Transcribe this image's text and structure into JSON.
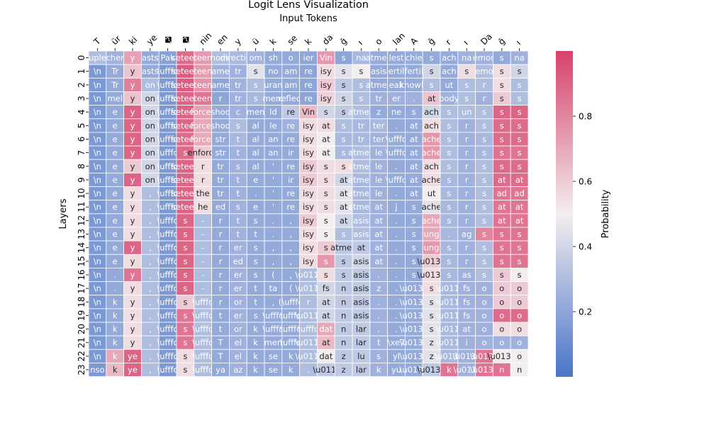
{
  "chart_data": {
    "type": "heatmap",
    "title": "Logit Lens Visualization",
    "subtitle": "Input Tokens",
    "ylabel": "Layers",
    "colorbar_label": "Probability",
    "colorbar_ticks": [
      0.2,
      0.4,
      0.6,
      0.8
    ],
    "value_range": [
      0.0,
      1.0
    ],
    "colormap": {
      "low": "#4a74c9",
      "mid": "#f3eeee",
      "high": "#d6416b"
    },
    "x_tokens": [
      "T",
      "ür",
      "ki",
      "ye",
      "�",
      "�",
      "nin",
      "en",
      "y",
      "ü",
      "k",
      "se",
      "k",
      "da",
      "ğ",
      "ı",
      "o",
      "lan",
      "A",
      "ğ",
      "r",
      "ı",
      "Da",
      "ğ",
      "ı"
    ],
    "y_layers": [
      "0",
      "1",
      "2",
      "3",
      "4",
      "5",
      "6",
      "7",
      "8",
      "9",
      "10",
      "11",
      "12",
      "13",
      "14",
      "15",
      "16",
      "17",
      "18",
      "19",
      "20",
      "21",
      "22",
      "23"
    ],
    "cells": [
      [
        "uple",
        "cher",
        "y",
        "asts",
        "Pak",
        "seteen",
        "teen",
        "nomi",
        "direction",
        "om",
        "sh",
        "o",
        "ier",
        "Vin",
        "s",
        "na",
        "atmea",
        "lest",
        "chie",
        "s",
        "ach",
        "na",
        "emon",
        "s",
        "na"
      ],
      [
        "\\n",
        "Tr",
        "y",
        "asts",
        "\\ufffd",
        "seteen",
        "teen",
        "ame",
        "tr",
        "s",
        "no",
        "am",
        "re",
        "isy",
        "s",
        "s",
        "asis",
        "ertil",
        "fertil",
        "s",
        "ach",
        "s",
        "emo",
        "s",
        "s"
      ],
      [
        "\\n",
        "Tr",
        "y",
        "on",
        "\\ufffd",
        "seteen",
        "teen",
        "ame",
        "tr",
        "s",
        "uran",
        "am",
        "re",
        "isy",
        "s",
        "s",
        "atmea",
        "eak",
        "knowle",
        "s",
        "ut",
        "s",
        "r",
        "s",
        "s"
      ],
      [
        "\\n",
        "mel",
        "y",
        "on",
        "\\ufffd",
        "seteen",
        "teen",
        "r",
        "tr",
        "s",
        "mere",
        "reflect",
        "re",
        "isy",
        "s",
        "s",
        "tr",
        "er",
        ".",
        "at",
        "body",
        "s",
        "r",
        "s",
        "s"
      ],
      [
        "\\n",
        "e",
        "y",
        "on",
        "\\ufffd",
        "seteen",
        "forces",
        "shoo",
        "c",
        "men",
        "ld",
        "re",
        "Vin",
        "s",
        "s",
        "atmea",
        "z",
        "ne",
        "s",
        "ach",
        "s",
        "un",
        "s",
        "s",
        "s"
      ],
      [
        "\\n",
        "e",
        "y",
        "on",
        "\\ufffd",
        "seteen",
        "forces",
        "shoo",
        "s",
        "al",
        "le",
        "re",
        "isy",
        "at",
        "s",
        "tr",
        "ter",
        ".",
        "at",
        "ach",
        "s",
        "r",
        "s",
        "s",
        "s"
      ],
      [
        "\\n",
        "e",
        "y",
        "on",
        "\\ufffd",
        "seteen",
        "forces",
        "str",
        "t",
        "al",
        "an",
        "re",
        "isy",
        "at",
        "s",
        "tr",
        "ter",
        "\\ufffd",
        "at",
        "ache",
        "s",
        "r",
        "s",
        "s",
        "s"
      ],
      [
        "\\n",
        "e",
        "y",
        "on",
        "\\ufffd",
        "s",
        "enforce",
        "str",
        "t",
        "al",
        "an",
        "ir",
        "isy",
        "at",
        "s",
        "atmea",
        "le",
        "\\ufffd",
        "at",
        "ache",
        "s",
        "r",
        "s",
        "s",
        "s"
      ],
      [
        "\\n",
        "e",
        "y",
        "on",
        "\\ufffd",
        "seteen",
        "r",
        "tr",
        "s",
        "al",
        "'",
        "re",
        "isy",
        "s",
        "s",
        "atmea",
        "le",
        ".",
        "at",
        "ach",
        "s",
        "r",
        "s",
        "s",
        "s"
      ],
      [
        "\\n",
        "e",
        "y",
        "on",
        "\\ufffd",
        "seteen",
        "r",
        "tr",
        "t",
        "e",
        "'",
        "ir",
        "isy",
        "s",
        "at",
        "atmea",
        "le",
        "\\ufffd",
        "at",
        "ache",
        "s",
        "r",
        "s",
        "at",
        "at"
      ],
      [
        "\\n",
        "e",
        "y",
        ",",
        "\\ufffd",
        "seteen",
        "the",
        "tr",
        "t",
        ".",
        "'",
        "re",
        "isy",
        "s",
        "at",
        "atmea",
        "le",
        ".",
        "at",
        "ut",
        "s",
        "r",
        "s",
        "ad",
        "ad"
      ],
      [
        "\\n",
        "e",
        "y",
        ",",
        "\\ufffd",
        "seteen",
        "he",
        "ed",
        "s",
        "e",
        "'",
        "re",
        "isy",
        "s",
        "at",
        "atmea",
        "at",
        "j",
        "s",
        "ache",
        "s",
        "r",
        "s",
        "at",
        "at"
      ],
      [
        "\\n",
        "e",
        "y",
        ",",
        "\\ufffd",
        "s",
        "-",
        "r",
        "t",
        "s",
        ".",
        ",",
        "isy",
        "s",
        "at",
        "asis",
        "at",
        ".",
        "s",
        "ache",
        "s",
        "r",
        "s",
        "at",
        "at"
      ],
      [
        "\\n",
        "e",
        "y",
        ",",
        "\\ufffd",
        "s",
        "-",
        "r",
        "t",
        "t",
        ".",
        ",",
        "isy",
        "s",
        "s",
        "asis",
        "at",
        ".",
        "s",
        "ung",
        ".",
        "ag",
        "s",
        "s",
        "s"
      ],
      [
        "\\n",
        "e",
        "y",
        ",",
        "\\ufffd",
        "s",
        "-",
        "r",
        "er",
        "s",
        ",",
        ",",
        "isy",
        "s",
        "atmea",
        "at",
        "at",
        ".",
        "s",
        "ung",
        "s",
        "r",
        "s",
        "s",
        "s"
      ],
      [
        "\\n",
        "e",
        "y",
        ",",
        "\\ufffd",
        "s",
        "-",
        "r",
        "ed",
        "s",
        ",",
        ",",
        "isy",
        "s",
        "s",
        "asis",
        "at",
        ".",
        "s",
        "\\u0131",
        "s",
        "r",
        "s",
        "s",
        "s"
      ],
      [
        "\\n",
        ".",
        "y",
        ",",
        "\\ufffd",
        "s",
        "-",
        "r",
        "er",
        "s",
        "(",
        ",",
        "\\u011f",
        "s",
        "s",
        "asis",
        ".",
        ".",
        "s",
        "\\u0131",
        "s",
        "as",
        "s",
        "s",
        "s"
      ],
      [
        "\\n",
        ".",
        "y",
        ",",
        "\\ufffd",
        "s",
        "-",
        "r",
        "er",
        "t",
        "ta",
        "(",
        "\\u011f",
        "fs",
        "n",
        "asis",
        "z",
        ".",
        "\\u0131",
        "s",
        "\\u011f",
        "fs",
        "o",
        "o",
        "o"
      ],
      [
        "\\n",
        "k",
        "y",
        ",",
        "\\ufffd",
        "s",
        "\\ufffd",
        "r",
        "or",
        "t",
        ",",
        "(\\ufffd",
        "r",
        "at",
        "n",
        "asis",
        ".",
        ".",
        "\\u0131",
        "s",
        "\\u011f",
        "fs",
        "o",
        "o",
        "o"
      ],
      [
        "\\n",
        "k",
        "y",
        ",",
        "\\ufffd",
        "s",
        "\\ufffd",
        "t",
        "er",
        "s",
        "\\ufffd",
        "\\ufffd",
        "\\u011f",
        "at",
        "n",
        "asis",
        ".",
        ".",
        "\\u0131",
        "s",
        "\\u011f",
        "fs",
        "o",
        "o",
        "o"
      ],
      [
        "\\n",
        "k",
        "y",
        ",",
        "\\ufffd",
        "s",
        "\\ufffd",
        "t",
        "or",
        "k",
        "\\ufffd",
        "\\ufffd",
        "\\ufffd",
        "dat",
        "n",
        "lar",
        ".",
        ".",
        "\\u0131",
        "s",
        "\\u011f",
        "at",
        "o",
        "o",
        "o"
      ],
      [
        "\\n",
        "k",
        "y",
        ",",
        "\\ufffd",
        "s",
        "\\ufffd",
        "T",
        "el",
        "k",
        "men",
        "\\ufffd",
        "\\u011f",
        "at",
        "n",
        "lar",
        "t",
        "\\xe7",
        "\\u0131",
        "z",
        "\\u011f",
        "i",
        "o",
        "o",
        "o"
      ],
      [
        "\\n",
        "k",
        "ye",
        ",",
        "\\ufffd",
        "s",
        "\\ufffd",
        "T",
        "el",
        "k",
        "se",
        "k",
        "\\u011f",
        "dat",
        "z",
        "lu",
        "s",
        "yl",
        "\\u0131",
        "z",
        "\\u0131",
        "\\u0131",
        "\\u0131",
        "\\u0131",
        "o"
      ],
      [
        "nso",
        "k",
        "ye",
        ",",
        "\\ufffd",
        "s",
        "\\ufffd",
        "ya",
        "az",
        "k",
        "se",
        "k",
        ".",
        "\\u011f",
        "z",
        "lar",
        "k",
        "yu",
        "\\u0131",
        "\\u0131",
        "k",
        "\\u011f",
        "\\u0131",
        "n",
        "n"
      ]
    ],
    "values": [
      [
        0.3,
        0.25,
        0.72,
        0.22,
        0.18,
        0.88,
        0.74,
        0.3,
        0.28,
        0.26,
        0.22,
        0.22,
        0.2,
        0.75,
        0.2,
        0.28,
        0.22,
        0.22,
        0.22,
        0.22,
        0.22,
        0.25,
        0.25,
        0.22,
        0.25
      ],
      [
        0.15,
        0.22,
        0.62,
        0.22,
        0.15,
        0.92,
        0.74,
        0.25,
        0.25,
        0.45,
        0.22,
        0.22,
        0.2,
        0.55,
        0.45,
        0.5,
        0.22,
        0.22,
        0.22,
        0.4,
        0.22,
        0.55,
        0.3,
        0.55,
        0.4
      ],
      [
        0.15,
        0.22,
        0.82,
        0.3,
        0.15,
        0.92,
        0.76,
        0.2,
        0.25,
        0.3,
        0.22,
        0.22,
        0.2,
        0.6,
        0.35,
        0.3,
        0.22,
        0.22,
        0.22,
        0.3,
        0.22,
        0.3,
        0.3,
        0.55,
        0.3
      ],
      [
        0.15,
        0.22,
        0.62,
        0.4,
        0.15,
        0.9,
        0.85,
        0.2,
        0.25,
        0.28,
        0.22,
        0.22,
        0.2,
        0.58,
        0.4,
        0.3,
        0.25,
        0.25,
        0.25,
        0.62,
        0.25,
        0.3,
        0.25,
        0.6,
        0.3
      ],
      [
        0.15,
        0.22,
        0.9,
        0.4,
        0.15,
        0.9,
        0.72,
        0.22,
        0.25,
        0.22,
        0.22,
        0.35,
        0.65,
        0.4,
        0.35,
        0.3,
        0.22,
        0.22,
        0.22,
        0.4,
        0.3,
        0.3,
        0.3,
        0.9,
        0.9
      ],
      [
        0.15,
        0.22,
        0.9,
        0.4,
        0.15,
        0.9,
        0.7,
        0.22,
        0.3,
        0.22,
        0.22,
        0.25,
        0.55,
        0.55,
        0.3,
        0.28,
        0.28,
        0.22,
        0.22,
        0.55,
        0.3,
        0.25,
        0.3,
        0.88,
        0.88
      ],
      [
        0.15,
        0.22,
        0.9,
        0.4,
        0.15,
        0.88,
        0.7,
        0.22,
        0.28,
        0.22,
        0.22,
        0.22,
        0.55,
        0.5,
        0.28,
        0.28,
        0.25,
        0.22,
        0.22,
        0.75,
        0.3,
        0.25,
        0.28,
        0.88,
        0.88
      ],
      [
        0.15,
        0.22,
        0.9,
        0.4,
        0.15,
        0.88,
        0.6,
        0.22,
        0.25,
        0.22,
        0.22,
        0.22,
        0.55,
        0.5,
        0.28,
        0.3,
        0.25,
        0.22,
        0.22,
        0.75,
        0.3,
        0.25,
        0.28,
        0.85,
        0.85
      ],
      [
        0.15,
        0.22,
        0.6,
        0.4,
        0.15,
        0.9,
        0.55,
        0.22,
        0.25,
        0.22,
        0.22,
        0.22,
        0.6,
        0.55,
        0.55,
        0.3,
        0.25,
        0.22,
        0.22,
        0.55,
        0.3,
        0.25,
        0.3,
        0.88,
        0.88
      ],
      [
        0.15,
        0.22,
        0.9,
        0.4,
        0.15,
        0.9,
        0.55,
        0.22,
        0.25,
        0.22,
        0.22,
        0.22,
        0.6,
        0.55,
        0.4,
        0.28,
        0.25,
        0.22,
        0.22,
        0.55,
        0.28,
        0.25,
        0.3,
        0.88,
        0.88
      ],
      [
        0.15,
        0.22,
        0.55,
        0.3,
        0.15,
        0.9,
        0.55,
        0.22,
        0.25,
        0.22,
        0.22,
        0.22,
        0.55,
        0.55,
        0.45,
        0.28,
        0.25,
        0.22,
        0.22,
        0.5,
        0.28,
        0.25,
        0.3,
        0.85,
        0.85
      ],
      [
        0.15,
        0.22,
        0.55,
        0.3,
        0.15,
        0.9,
        0.55,
        0.22,
        0.25,
        0.22,
        0.22,
        0.22,
        0.55,
        0.55,
        0.45,
        0.28,
        0.25,
        0.22,
        0.22,
        0.45,
        0.28,
        0.25,
        0.3,
        0.85,
        0.85
      ],
      [
        0.15,
        0.22,
        0.55,
        0.3,
        0.15,
        0.9,
        0.3,
        0.22,
        0.25,
        0.22,
        0.22,
        0.22,
        0.6,
        0.5,
        0.4,
        0.3,
        0.25,
        0.22,
        0.22,
        0.7,
        0.28,
        0.25,
        0.3,
        0.85,
        0.85
      ],
      [
        0.15,
        0.22,
        0.55,
        0.3,
        0.15,
        0.9,
        0.3,
        0.22,
        0.25,
        0.22,
        0.22,
        0.22,
        0.55,
        0.5,
        0.3,
        0.3,
        0.25,
        0.22,
        0.22,
        0.7,
        0.28,
        0.25,
        0.8,
        0.85,
        0.85
      ],
      [
        0.15,
        0.22,
        0.9,
        0.3,
        0.15,
        0.9,
        0.3,
        0.22,
        0.25,
        0.22,
        0.22,
        0.22,
        0.55,
        0.6,
        0.35,
        0.35,
        0.25,
        0.22,
        0.22,
        0.75,
        0.28,
        0.25,
        0.3,
        0.85,
        0.85
      ],
      [
        0.15,
        0.22,
        0.55,
        0.3,
        0.15,
        0.9,
        0.3,
        0.22,
        0.25,
        0.22,
        0.22,
        0.22,
        0.55,
        0.75,
        0.35,
        0.4,
        0.25,
        0.22,
        0.22,
        0.6,
        0.28,
        0.25,
        0.3,
        0.85,
        0.85
      ],
      [
        0.15,
        0.22,
        0.85,
        0.3,
        0.15,
        0.9,
        0.3,
        0.22,
        0.25,
        0.22,
        0.22,
        0.22,
        0.3,
        0.55,
        0.35,
        0.35,
        0.25,
        0.22,
        0.22,
        0.55,
        0.28,
        0.25,
        0.3,
        0.6,
        0.5
      ],
      [
        0.15,
        0.22,
        0.55,
        0.3,
        0.15,
        0.9,
        0.3,
        0.22,
        0.25,
        0.22,
        0.22,
        0.22,
        0.3,
        0.4,
        0.35,
        0.35,
        0.25,
        0.22,
        0.22,
        0.55,
        0.28,
        0.25,
        0.25,
        0.6,
        0.6
      ],
      [
        0.15,
        0.22,
        0.55,
        0.3,
        0.15,
        0.6,
        0.3,
        0.22,
        0.25,
        0.22,
        0.22,
        0.22,
        0.3,
        0.4,
        0.35,
        0.35,
        0.25,
        0.22,
        0.22,
        0.45,
        0.28,
        0.25,
        0.25,
        0.6,
        0.6
      ],
      [
        0.15,
        0.22,
        0.55,
        0.3,
        0.15,
        0.85,
        0.3,
        0.22,
        0.25,
        0.22,
        0.22,
        0.22,
        0.3,
        0.4,
        0.35,
        0.35,
        0.25,
        0.22,
        0.22,
        0.45,
        0.28,
        0.25,
        0.25,
        0.88,
        0.88
      ],
      [
        0.15,
        0.22,
        0.55,
        0.3,
        0.15,
        0.85,
        0.3,
        0.22,
        0.25,
        0.22,
        0.22,
        0.22,
        0.3,
        0.7,
        0.35,
        0.35,
        0.25,
        0.22,
        0.22,
        0.45,
        0.28,
        0.25,
        0.25,
        0.55,
        0.55
      ],
      [
        0.15,
        0.22,
        0.55,
        0.3,
        0.15,
        0.85,
        0.3,
        0.22,
        0.25,
        0.22,
        0.22,
        0.22,
        0.3,
        0.65,
        0.35,
        0.35,
        0.25,
        0.22,
        0.22,
        0.45,
        0.28,
        0.25,
        0.25,
        0.25,
        0.25
      ],
      [
        0.15,
        0.7,
        0.9,
        0.3,
        0.15,
        0.55,
        0.3,
        0.22,
        0.25,
        0.22,
        0.22,
        0.22,
        0.3,
        0.5,
        0.35,
        0.35,
        0.25,
        0.22,
        0.22,
        0.45,
        0.28,
        0.25,
        0.85,
        0.5,
        0.5
      ],
      [
        0.15,
        0.65,
        0.9,
        0.3,
        0.15,
        0.55,
        0.3,
        0.22,
        0.25,
        0.22,
        0.22,
        0.22,
        0.3,
        0.35,
        0.35,
        0.35,
        0.25,
        0.22,
        0.22,
        0.35,
        0.85,
        0.25,
        0.85,
        0.85,
        0.5
      ]
    ]
  }
}
